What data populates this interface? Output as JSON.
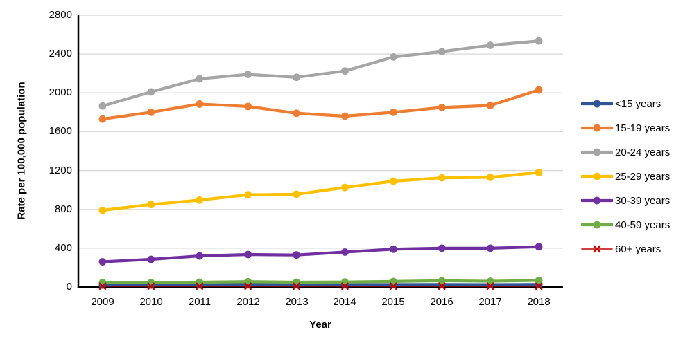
{
  "chart_data": {
    "type": "line",
    "x": [
      "2009",
      "2010",
      "2011",
      "2012",
      "2013",
      "2014",
      "2015",
      "2016",
      "2017",
      "2018"
    ],
    "xlabel": "Year",
    "ylabel": "Rate per 100,000 population",
    "ylim": [
      0,
      2800
    ],
    "y_ticks": [
      0,
      400,
      800,
      1200,
      1600,
      2000,
      2400,
      2800
    ],
    "grid": "horizontal",
    "legend_position": "right-outside",
    "series": [
      {
        "name": "<15 years",
        "color": "#2F5597",
        "marker": "circle",
        "values": [
          20,
          21,
          23,
          25,
          24,
          23,
          25,
          26,
          24,
          26
        ]
      },
      {
        "name": "15-19 years",
        "color": "#ED7D31",
        "marker": "circle",
        "values": [
          1730,
          1800,
          1885,
          1860,
          1790,
          1760,
          1800,
          1850,
          1870,
          2030
        ]
      },
      {
        "name": "20-24 years",
        "color": "#A5A5A5",
        "marker": "circle",
        "values": [
          1865,
          2010,
          2145,
          2190,
          2160,
          2225,
          2370,
          2425,
          2490,
          2535
        ]
      },
      {
        "name": "25-29 years",
        "color": "#FFC000",
        "marker": "circle",
        "values": [
          790,
          850,
          895,
          950,
          955,
          1025,
          1090,
          1125,
          1130,
          1180
        ]
      },
      {
        "name": "30-39 years",
        "color": "#7030A0",
        "marker": "circle",
        "values": [
          260,
          285,
          320,
          335,
          330,
          360,
          390,
          400,
          400,
          415
        ]
      },
      {
        "name": "40-59 years",
        "color": "#70AD47",
        "marker": "circle",
        "values": [
          48,
          46,
          50,
          55,
          50,
          52,
          58,
          65,
          60,
          68
        ]
      },
      {
        "name": "60+ years",
        "color": "#C00000",
        "marker": "x",
        "values": [
          8,
          8,
          8,
          8,
          8,
          8,
          8,
          8,
          8,
          8
        ]
      }
    ]
  },
  "colors": {
    "gridline": "#D9D9D9",
    "axis": "#000000",
    "text": "#000000",
    "background": "#FFFFFF"
  }
}
